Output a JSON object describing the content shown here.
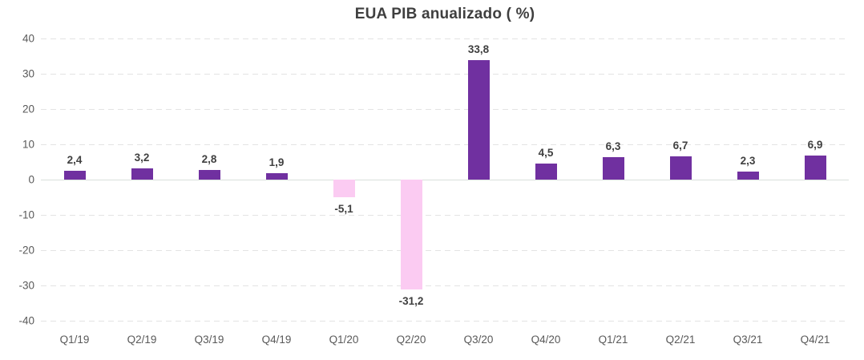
{
  "chart_data": {
    "type": "bar",
    "title": "EUA PIB anualizado ( %)",
    "categories": [
      "Q1/19",
      "Q2/19",
      "Q3/19",
      "Q4/19",
      "Q1/20",
      "Q2/20",
      "Q3/20",
      "Q4/20",
      "Q1/21",
      "Q2/21",
      "Q3/21",
      "Q4/21"
    ],
    "values": [
      2.4,
      3.2,
      2.8,
      1.9,
      -5.1,
      -31.2,
      33.8,
      4.5,
      6.3,
      6.7,
      2.3,
      6.9
    ],
    "value_labels": [
      "2,4",
      "3,2",
      "2,8",
      "1,9",
      "-5,1",
      "-31,2",
      "33,8",
      "4,5",
      "6,3",
      "6,7",
      "2,3",
      "6,9"
    ],
    "xlabel": "",
    "ylabel": "",
    "ylim": [
      -40,
      40
    ],
    "yticks": [
      40,
      30,
      20,
      10,
      0,
      -10,
      -20,
      -30,
      -40
    ],
    "grid": "horizontal-dashed",
    "legend": "none",
    "colors": {
      "positive_bar": "#7030A0",
      "negative_bar": "#FBCBF2",
      "gridline": "#E3E3E3",
      "zero_line": "#D9DFDC",
      "axis_text": "#595959",
      "data_label_text": "#404040",
      "title_text": "#3F3F3F",
      "background": "#FFFFFF"
    }
  }
}
